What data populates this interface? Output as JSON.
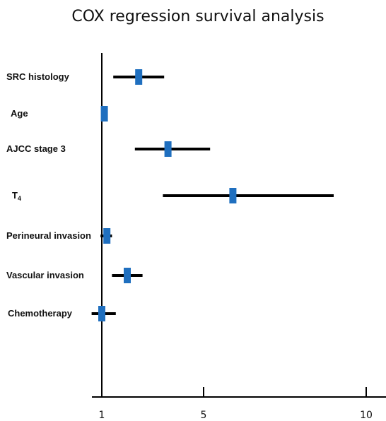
{
  "chart_data": {
    "type": "forest",
    "title": "COX regression survival analysis",
    "x_ticks": [
      1,
      5,
      10
    ],
    "xlim": [
      1,
      10
    ],
    "colors": {
      "ci_line": "#000000",
      "point": "#1f6fbf",
      "axis": "#000000"
    },
    "rows": [
      {
        "name": "SRC histology",
        "hr": 2.45,
        "ci_low": 1.45,
        "ci_high": 3.45
      },
      {
        "name": "Age",
        "hr": 1.1,
        "ci_low": 1.05,
        "ci_high": 1.15
      },
      {
        "name": "AJCC stage 3",
        "hr": 3.6,
        "ci_low": 2.3,
        "ci_high": 5.2
      },
      {
        "name": "T",
        "name_sub": "4",
        "hr": 5.9,
        "ci_low": 3.4,
        "ci_high": 9.0
      },
      {
        "name": "Perineural invasion",
        "hr": 1.2,
        "ci_low": 0.95,
        "ci_high": 1.4
      },
      {
        "name": "Vascular invasion",
        "hr": 2.0,
        "ci_low": 1.4,
        "ci_high": 2.6
      },
      {
        "name": "Chemotherapy",
        "hr": 1.0,
        "ci_low": 0.6,
        "ci_high": 1.55
      }
    ]
  }
}
